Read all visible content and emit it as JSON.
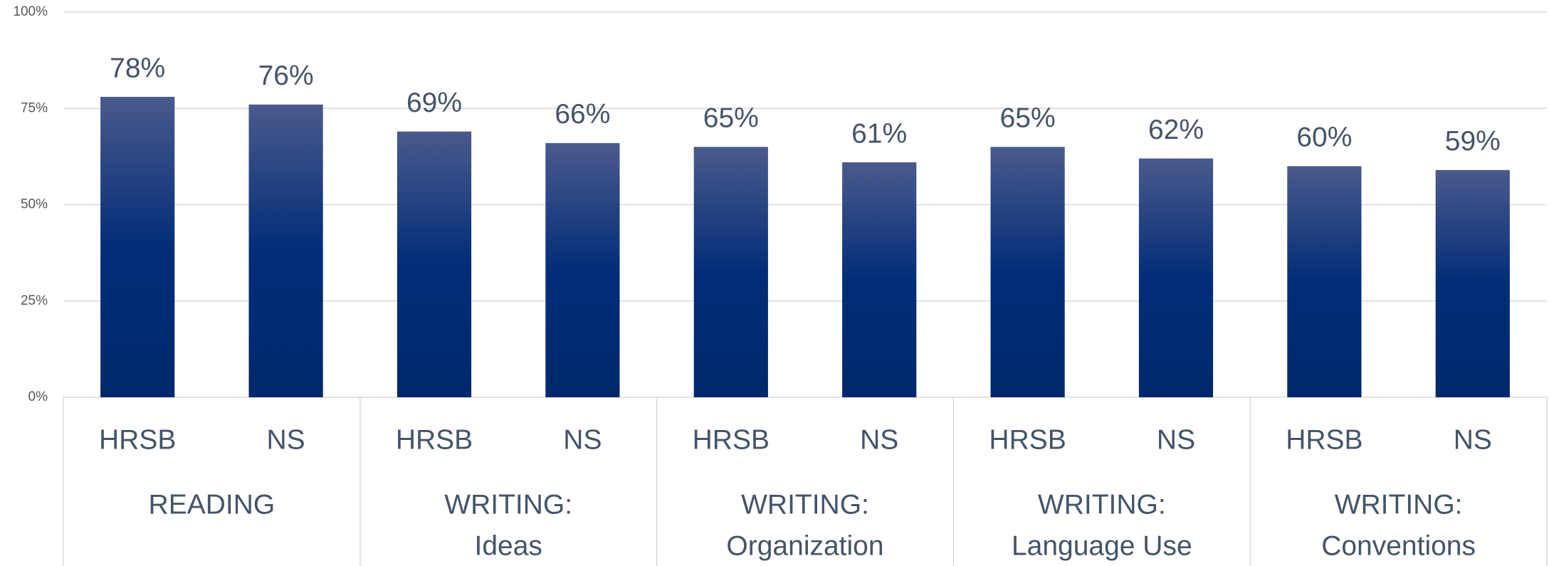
{
  "chart_data": {
    "type": "bar",
    "categories": [
      "HRSB",
      "NS",
      "HRSB",
      "NS",
      "HRSB",
      "NS",
      "HRSB",
      "NS",
      "HRSB",
      "NS"
    ],
    "groups": [
      [
        "READING"
      ],
      [
        "WRITING:",
        "Ideas"
      ],
      [
        "WRITING:",
        "Organization"
      ],
      [
        "WRITING:",
        "Language Use"
      ],
      [
        "WRITING:",
        "Conventions"
      ]
    ],
    "values": [
      78,
      76,
      69,
      66,
      65,
      61,
      65,
      62,
      60,
      59
    ],
    "value_labels": [
      "78%",
      "76%",
      "69%",
      "66%",
      "65%",
      "61%",
      "65%",
      "62%",
      "60%",
      "59%"
    ],
    "ylim": [
      0,
      100
    ],
    "yticks": [
      {
        "value": 0,
        "label": "0%"
      },
      {
        "value": 25,
        "label": "25%"
      },
      {
        "value": 50,
        "label": "50%"
      },
      {
        "value": 75,
        "label": "75%"
      },
      {
        "value": 100,
        "label": "100%"
      }
    ],
    "grid": true,
    "color": "#02307a"
  }
}
